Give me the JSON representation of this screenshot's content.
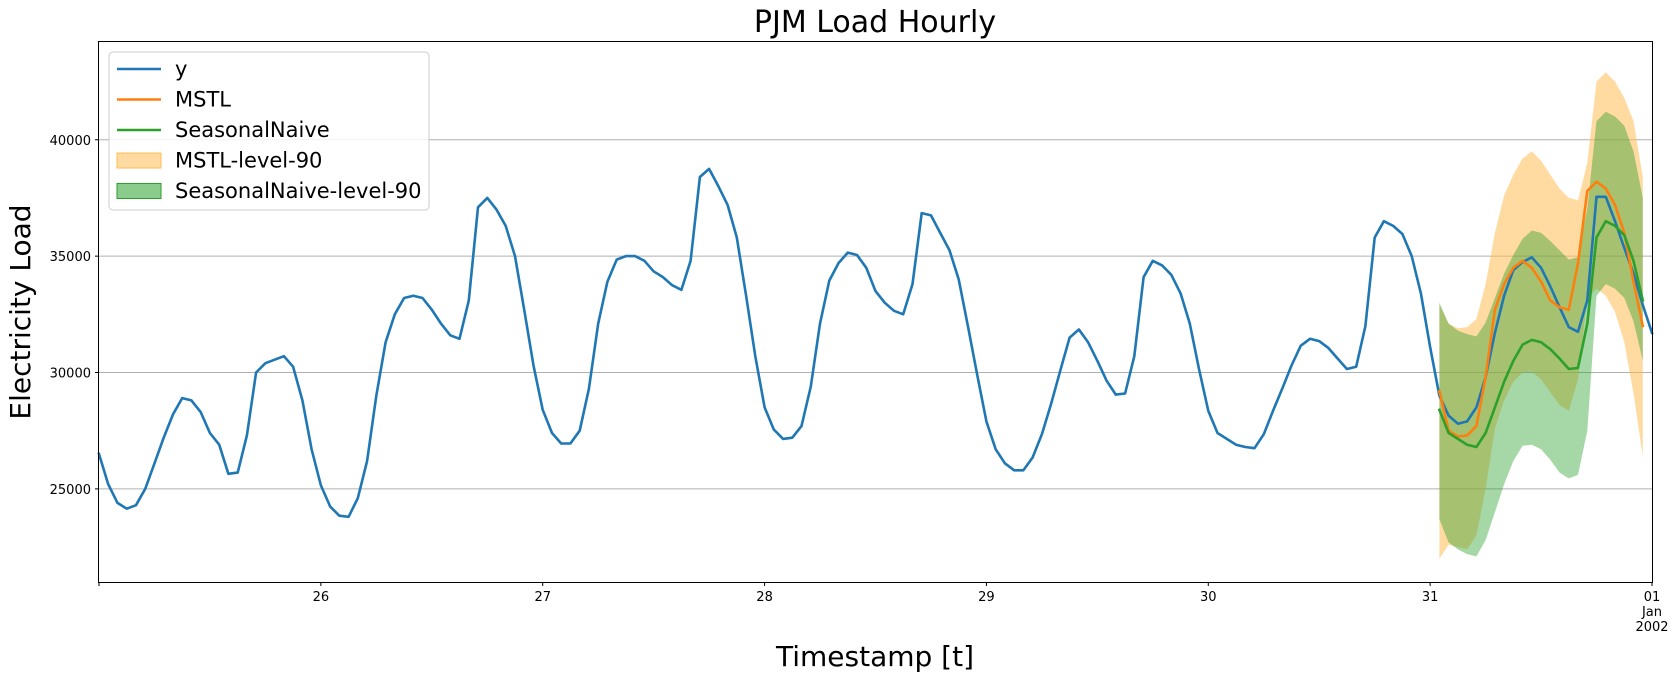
{
  "chart_data": {
    "type": "line",
    "title": "PJM Load Hourly",
    "xlabel": "Timestamp [t]",
    "ylabel": "Electricity Load",
    "ylim": [
      21000,
      44200
    ],
    "yticks": [
      25000,
      30000,
      35000,
      40000
    ],
    "xlim": [
      "2001-12-25T00:00",
      "2002-01-01T00:00"
    ],
    "xticks": [
      {
        "x": "2001-12-26T00:00",
        "lines": [
          "26"
        ]
      },
      {
        "x": "2001-12-27T00:00",
        "lines": [
          "27"
        ]
      },
      {
        "x": "2001-12-28T00:00",
        "lines": [
          "28"
        ]
      },
      {
        "x": "2001-12-29T00:00",
        "lines": [
          "29"
        ]
      },
      {
        "x": "2001-12-30T00:00",
        "lines": [
          "30"
        ]
      },
      {
        "x": "2001-12-31T00:00",
        "lines": [
          "31"
        ]
      },
      {
        "x": "2002-01-01T00:00",
        "lines": [
          "01",
          "Jan",
          "2002"
        ]
      }
    ],
    "grid": "horizontal",
    "legend_position": "top-left",
    "series": [
      {
        "name": "y",
        "color": "#1f77b4",
        "start": "2001-12-25T00:00",
        "step_hours": 1,
        "values": [
          26500,
          25200,
          24400,
          24150,
          24300,
          25000,
          26100,
          27200,
          28200,
          28900,
          28800,
          28300,
          27400,
          26900,
          25650,
          25700,
          27300,
          30000,
          30400,
          30550,
          30700,
          30250,
          28800,
          26700,
          25150,
          24250,
          23850,
          23800,
          24600,
          26200,
          29000,
          31300,
          32500,
          33200,
          33300,
          33200,
          32700,
          32100,
          31600,
          31450,
          33100,
          37100,
          37500,
          37000,
          36300,
          35000,
          32700,
          30300,
          28400,
          27400,
          26950,
          26950,
          27500,
          29300,
          32100,
          33900,
          34850,
          35000,
          35000,
          34800,
          34350,
          34100,
          33750,
          33550,
          34800,
          38400,
          38750,
          38000,
          37200,
          35800,
          33300,
          30700,
          28500,
          27550,
          27150,
          27200,
          27700,
          29400,
          32100,
          33950,
          34700,
          35150,
          35050,
          34500,
          33500,
          33000,
          32650,
          32500,
          33800,
          36850,
          36750,
          36000,
          35250,
          34000,
          32000,
          29900,
          27900,
          26700,
          26100,
          25800,
          25800,
          26350,
          27350,
          28650,
          30100,
          31500,
          31850,
          31300,
          30500,
          29650,
          29050,
          29100,
          30700,
          34100,
          34800,
          34600,
          34200,
          33400,
          32100,
          30150,
          28350,
          27400,
          27150,
          26900,
          26800,
          26750,
          27350,
          28350,
          29300,
          30300,
          31150,
          31450,
          31350,
          31050,
          30600,
          30150,
          30250,
          32000,
          35800,
          36500,
          36300,
          35950,
          35000,
          33400,
          31100,
          29000,
          28150,
          27800,
          27900,
          28500,
          29800,
          31700,
          33300,
          34400,
          34750,
          34950,
          34500,
          33700,
          32800,
          31950,
          31750,
          33100,
          37550,
          37550,
          36500,
          35350,
          34250,
          32900,
          31700
        ]
      },
      {
        "name": "MSTL",
        "color": "#ff7f0e",
        "start": "2001-12-31T01:00",
        "step_hours": 1,
        "values": [
          29200,
          27500,
          27250,
          27300,
          27700,
          29800,
          32700,
          33800,
          34500,
          34800,
          34500,
          33900,
          33100,
          32800,
          32700,
          34700,
          37800,
          38200,
          37900,
          37200,
          36000,
          33900,
          32000
        ]
      },
      {
        "name": "SeasonalNaive",
        "color": "#2ca02c",
        "start": "2001-12-31T01:00",
        "step_hours": 1,
        "values": [
          28400,
          27400,
          27150,
          26900,
          26800,
          27400,
          28500,
          29600,
          30500,
          31200,
          31400,
          31300,
          31000,
          30600,
          30150,
          30200,
          32100,
          35800,
          36500,
          36300,
          35900,
          34800,
          33100
        ]
      }
    ],
    "bands": [
      {
        "name": "MSTL-level-90",
        "color": "#ffbe55",
        "opacity": 0.55,
        "start": "2001-12-31T01:00",
        "step_hours": 1,
        "lower": [
          22000,
          22600,
          22500,
          22400,
          23000,
          25000,
          27600,
          28800,
          29600,
          30000,
          30050,
          29700,
          29150,
          28600,
          28350,
          29700,
          33200,
          33600,
          33300,
          32600,
          31300,
          29100,
          26400
        ],
        "upper": [
          32900,
          32100,
          31900,
          31950,
          32300,
          33800,
          36000,
          37600,
          38500,
          39200,
          39500,
          39100,
          38500,
          37900,
          37500,
          37400,
          39000,
          42500,
          42900,
          42500,
          41800,
          40800,
          38400
        ]
      },
      {
        "name": "SeasonalNaive-level-90",
        "color": "#2ca02c",
        "opacity": 0.42,
        "start": "2001-12-31T01:00",
        "step_hours": 1,
        "lower": [
          23700,
          22700,
          22400,
          22200,
          22100,
          22800,
          24000,
          25200,
          26200,
          26850,
          26900,
          26700,
          26250,
          25700,
          25450,
          25600,
          27500,
          33300,
          33800,
          33600,
          33200,
          32200,
          30500
        ],
        "upper": [
          33000,
          32100,
          31800,
          31650,
          31550,
          32150,
          33200,
          34250,
          35050,
          35750,
          36100,
          36000,
          35650,
          35250,
          34850,
          34950,
          37050,
          40800,
          41200,
          41000,
          40600,
          39500,
          37500
        ]
      }
    ],
    "legend": [
      {
        "label": "y",
        "kind": "line",
        "color": "#1f77b4"
      },
      {
        "label": "MSTL",
        "kind": "line",
        "color": "#ff7f0e"
      },
      {
        "label": "SeasonalNaive",
        "kind": "line",
        "color": "#2ca02c"
      },
      {
        "label": "MSTL-level-90",
        "kind": "patch",
        "color": "#ffbe55"
      },
      {
        "label": "SeasonalNaive-level-90",
        "kind": "patch",
        "color": "#2ca02c"
      }
    ]
  }
}
